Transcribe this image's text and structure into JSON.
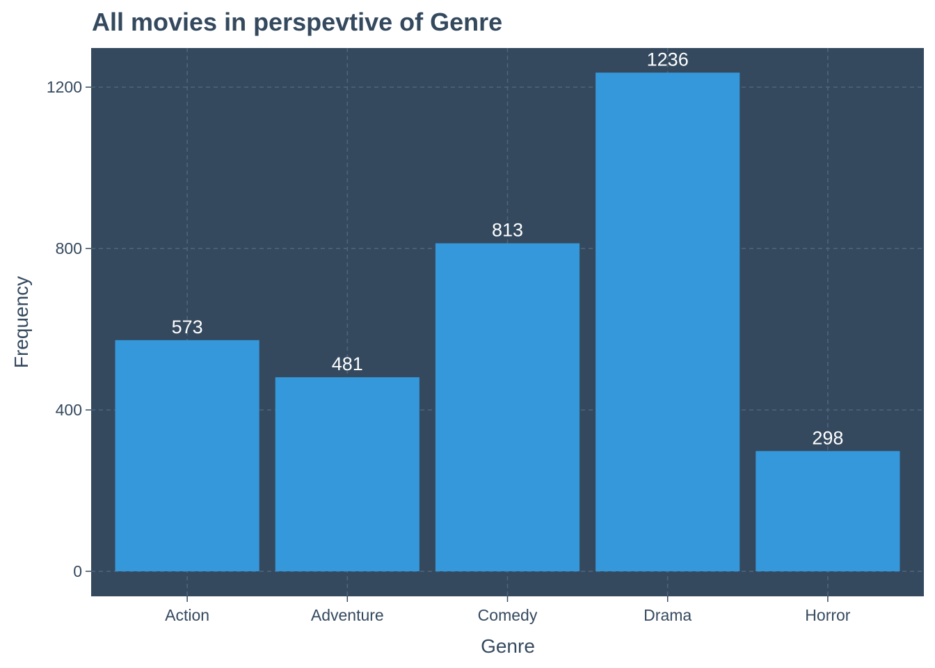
{
  "chart_data": {
    "type": "bar",
    "title": "All movies in perspevtive of Genre",
    "xlabel": "Genre",
    "ylabel": "Frequency",
    "categories": [
      "Action",
      "Adventure",
      "Comedy",
      "Drama",
      "Horror"
    ],
    "values": [
      573,
      481,
      813,
      1236,
      298
    ],
    "value_labels": [
      "573",
      "481",
      "813",
      "1236",
      "298"
    ],
    "yticks": [
      0,
      400,
      800,
      1200
    ],
    "ytick_labels": [
      "0",
      "400",
      "800",
      "1200"
    ],
    "ylim": [
      -62,
      1297
    ],
    "grid": true,
    "grid_style": "dashed",
    "legend": "none",
    "colors": {
      "panel_background": "#34495e",
      "bar_fill": "#3498db",
      "grid_line": "#4f6479",
      "text": "#34495e",
      "data_label": "#ffffff",
      "page_background": "#ffffff"
    }
  }
}
